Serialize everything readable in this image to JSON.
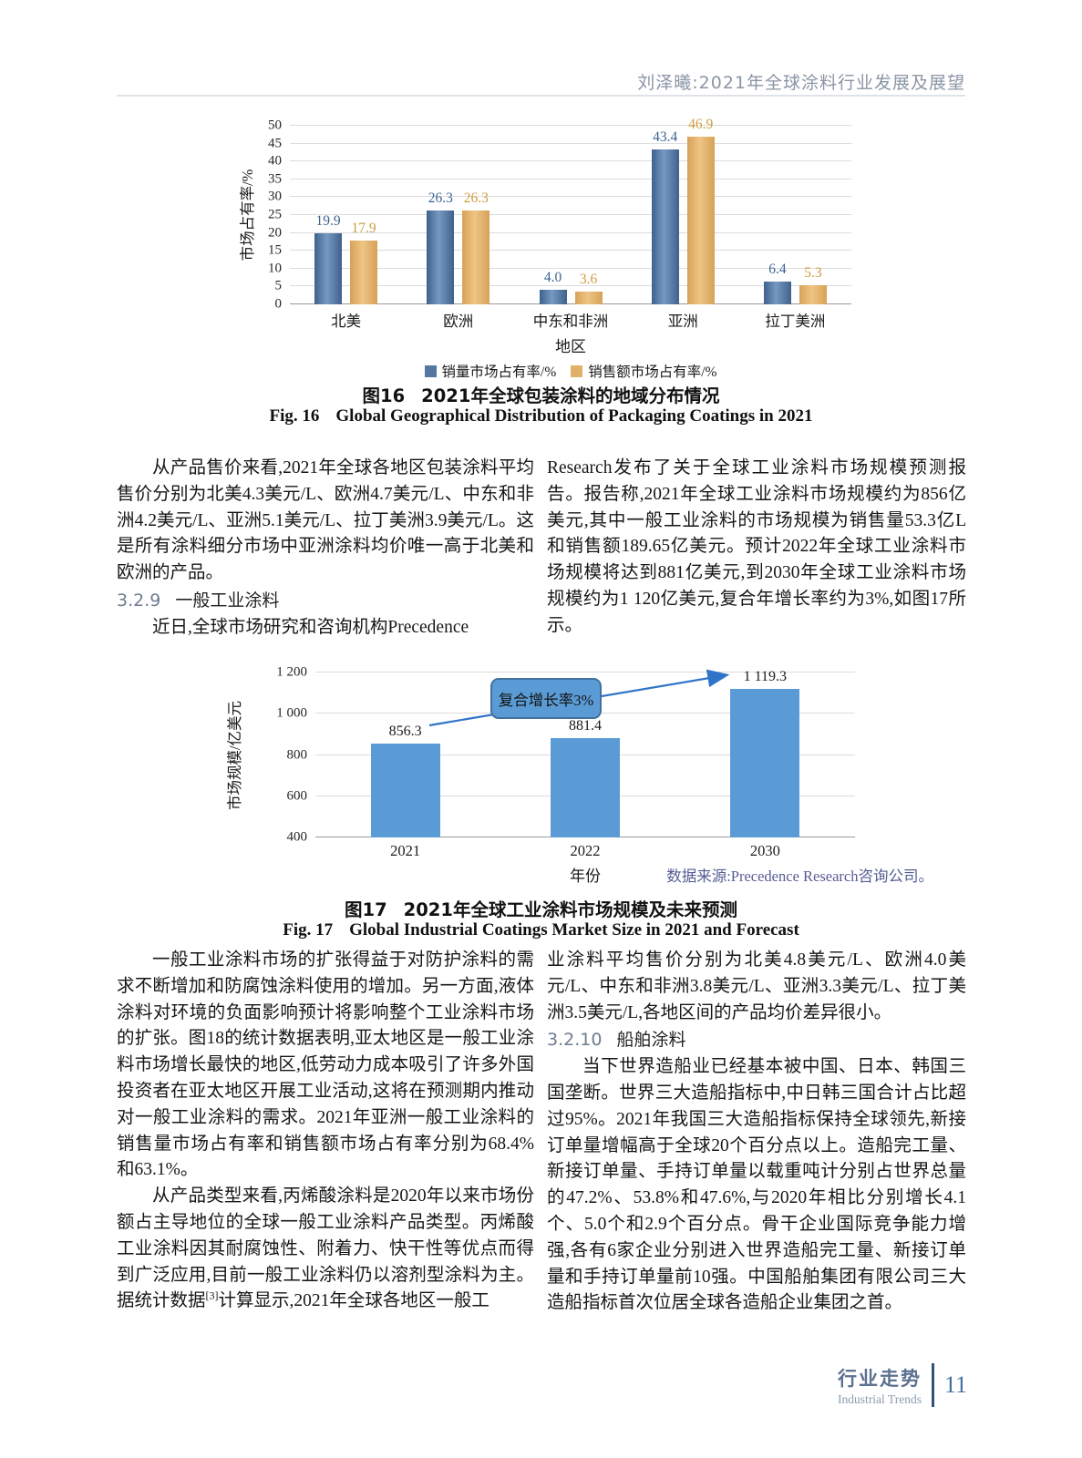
{
  "header": {
    "running_title": "刘泽曦:2021年全球涂料行业发展及展望"
  },
  "chart_data": [
    {
      "id": "fig16",
      "type": "bar",
      "categories": [
        "北美",
        "欧洲",
        "中东和非洲",
        "亚洲",
        "拉丁美洲"
      ],
      "series": [
        {
          "name": "销量市场占有率/%",
          "values": [
            19.9,
            26.3,
            4.0,
            43.4,
            6.4
          ],
          "color": "#53779f",
          "label_color": "#3c6493"
        },
        {
          "name": "销售额市场占有率/%",
          "values": [
            17.9,
            26.3,
            3.6,
            46.9,
            5.3
          ],
          "color": "#e0b269",
          "label_color": "#cf9c42"
        }
      ],
      "xlabel": "地区",
      "ylabel": "市场占有率/%",
      "ylim": [
        0,
        50
      ],
      "ytick_step": 5,
      "grid": true,
      "legend_position": "bottom"
    },
    {
      "id": "fig17",
      "type": "bar",
      "categories": [
        "2021",
        "2022",
        "2030"
      ],
      "values": [
        856.3,
        881.4,
        1119.3
      ],
      "value_labels": [
        "856.3",
        "881.4",
        "1 119.3"
      ],
      "xlabel": "年份",
      "ylabel": "市场规模/亿美元",
      "ylim": [
        400,
        1200
      ],
      "ytick_step": 200,
      "ytick_labels": [
        "400",
        "600",
        "800",
        "1 000",
        "1 200"
      ],
      "bar_color": "#5b9bd5",
      "annotation": "复合增长率3%",
      "annotation_border": "#41719c",
      "arrow_color": "#2e74c8",
      "grid": true
    }
  ],
  "figures": {
    "fig16": {
      "zh_label": "图16",
      "zh_title": "2021年全球包装涂料的地域分布情况",
      "en_label": "Fig. 16",
      "en_title": "Global Geographical Distribution of Packaging Coatings in 2021"
    },
    "fig17": {
      "zh_label": "图17",
      "zh_title": "2021年全球工业涂料市场规模及未来预测",
      "en_label": "Fig. 17",
      "en_title": "Global Industrial Coatings Market Size in 2021 and Forecast",
      "source_note": "数据来源:Precedence Research咨询公司。"
    }
  },
  "sections": {
    "p1": "从产品售价来看,2021年全球各地区包装涂料平均售价分别为北美4.3美元/L、欧洲4.7美元/L、中东和非洲4.2美元/L、亚洲5.1美元/L、拉丁美洲3.9美元/L。这是所有涂料细分市场中亚洲涂料均价唯一高于北美和欧洲的产品。",
    "h329_num": "3.2.9",
    "h329_title": "一般工业涂料",
    "p2": "近日,全球市场研究和咨询机构Precedence",
    "p2_cont": "Research发布了关于全球工业涂料市场规模预测报告。报告称,2021年全球工业涂料市场规模约为856亿美元,其中一般工业涂料的市场规模为销售量53.3亿L和销售额189.65亿美元。预计2022年全球工业涂料市场规模将达到881亿美元,到2030年全球工业涂料市场规模约为1 120亿美元,复合年增长率约为3%,如图17所示。",
    "p3": "一般工业涂料市场的扩张得益于对防护涂料的需求不断增加和防腐蚀涂料使用的增加。另一方面,液体涂料对环境的负面影响预计将影响整个工业涂料市场的扩张。图18的统计数据表明,亚太地区是一般工业涂料市场增长最快的地区,低劳动力成本吸引了许多外国投资者在亚太地区开展工业活动,这将在预测期内推动对一般工业涂料的需求。2021年亚洲一般工业涂料的销售量市场占有率和销售额市场占有率分别为68.4%和63.1%。",
    "p4a": "从产品类型来看,丙烯酸涂料是2020年以来市场份额占主导地位的全球一般工业涂料产品类型。丙烯酸工业涂料因其耐腐蚀性、附着力、快干性等优点而得到广泛应用,目前一般工业涂料仍以溶剂型涂料为主。据统计数据",
    "p4_sup": "[3]",
    "p4b": "计算显示,2021年全球各地区一般工",
    "p5": "业涂料平均售价分别为北美4.8美元/L、欧洲4.0美元/L、中东和非洲3.8美元/L、亚洲3.3美元/L、拉丁美洲3.5美元/L,各地区间的产品均价差异很小。",
    "h3210_num": "3.2.10",
    "h3210_title": "船舶涂料",
    "p6": "当下世界造船业已经基本被中国、日本、韩国三国垄断。世界三大造船指标中,中日韩三国合计占比超过95%。2021年我国三大造船指标保持全球领先,新接订单量增幅高于全球20个百分点以上。造船完工量、新接订单量、手持订单量以载重吨计分别占世界总量的47.2%、53.8%和47.6%,与2020年相比分别增长4.1个、5.0个和2.9个百分点。骨干企业国际竞争能力增强,各有6家企业分别进入世界造船完工量、新接订单量和手持订单量前10强。中国船舶集团有限公司三大造船指标首次位居全球各造船企业集团之首。"
  },
  "footer": {
    "zh": "行业走势",
    "en": "Industrial Trends",
    "page": "11"
  }
}
